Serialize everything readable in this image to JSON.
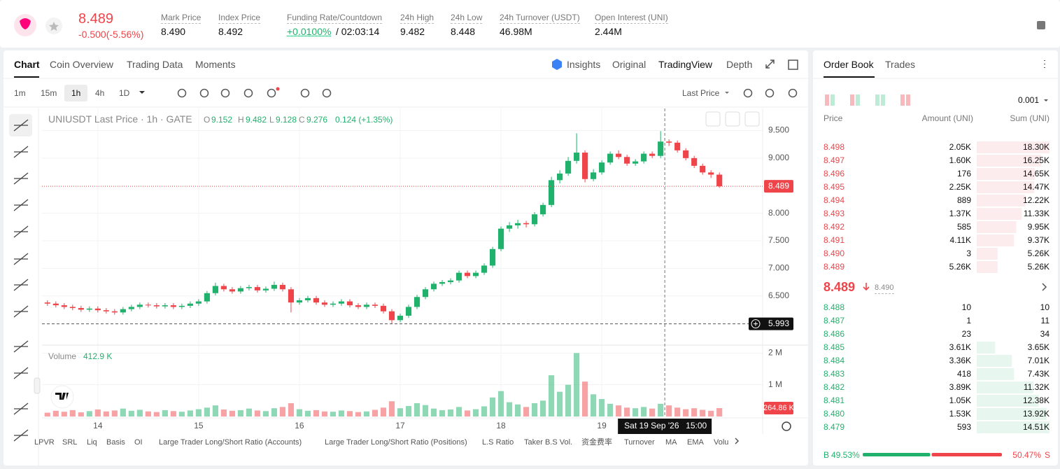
{
  "header": {
    "price": "8.489",
    "change": "-0.500(-5.56%)",
    "stats": [
      {
        "label": "Mark Price",
        "value": "8.490"
      },
      {
        "label": "Index Price",
        "value": "8.492"
      },
      {
        "label": "Funding Rate/Countdown",
        "value": "+0.0100%",
        "extra": "/ 02:03:14"
      },
      {
        "label": "24h High",
        "value": "9.482"
      },
      {
        "label": "24h Low",
        "value": "8.448"
      },
      {
        "label": "24h Turnover (USDT)",
        "value": "46.98M"
      },
      {
        "label": "Open Interest (UNI)",
        "value": "2.44M"
      }
    ]
  },
  "chart_tabs": [
    "Chart",
    "Coin Overview",
    "Trading Data",
    "Moments"
  ],
  "view_tabs": [
    "Insights",
    "Original",
    "TradingView",
    "Depth"
  ],
  "intervals": [
    "1m",
    "15m",
    "1h",
    "4h",
    "1D"
  ],
  "price_type": "Last Price",
  "legend": {
    "symbol": "UNIUSDT Last Price · 1h · GATE",
    "o_label": "O",
    "o": "9.152",
    "h_label": "H",
    "h": "9.482",
    "l_label": "L",
    "l": "9.128",
    "c_label": "C",
    "c": "9.276",
    "change": "0.124 (+1.35%)"
  },
  "volume_legend": {
    "label": "Volume",
    "value": "412.9 K"
  },
  "bottom_indicators": [
    "LPVR",
    "SRL",
    "Liq",
    "Basis",
    "OI",
    "Large Trader Long/Short Ratio (Accounts)",
    "Large Trader Long/Short Ratio (Positions)",
    "L.S Ratio",
    "Taker B.S Vol.",
    "资金费率",
    "Turnover",
    "MA",
    "EMA",
    "Volu"
  ],
  "chart_data": {
    "type": "candlestick",
    "x": [
      -12,
      -10,
      -8,
      -6,
      -4,
      -2,
      0,
      2,
      4,
      6,
      8,
      10,
      12,
      14,
      16,
      18,
      20,
      22,
      24,
      26,
      28,
      30,
      32,
      34,
      36,
      38,
      40,
      42,
      44,
      46,
      48,
      50,
      52,
      54,
      56,
      58,
      60,
      62,
      64,
      66,
      68,
      70,
      72,
      74,
      76,
      78,
      80,
      82,
      84,
      86,
      88,
      90,
      92,
      94,
      96,
      98,
      100,
      102,
      104,
      106,
      108,
      110,
      112,
      114,
      116,
      118,
      120,
      122,
      124,
      126,
      128,
      130,
      132,
      134,
      136,
      138,
      140,
      142,
      144,
      146,
      148
    ],
    "open": [
      6.38,
      6.36,
      6.33,
      6.3,
      6.28,
      6.25,
      6.27,
      6.24,
      6.22,
      6.2,
      6.26,
      6.3,
      6.34,
      6.33,
      6.31,
      6.33,
      6.3,
      6.32,
      6.36,
      6.4,
      6.55,
      6.68,
      6.62,
      6.58,
      6.64,
      6.66,
      6.6,
      6.63,
      6.7,
      6.62,
      6.38,
      6.42,
      6.46,
      6.38,
      6.34,
      6.36,
      6.4,
      6.33,
      6.3,
      6.34,
      6.32,
      6.22,
      6.06,
      6.14,
      6.3,
      6.48,
      6.62,
      6.72,
      6.75,
      6.78,
      6.92,
      6.86,
      6.92,
      7.05,
      7.35,
      7.72,
      7.78,
      7.82,
      7.8,
      7.98,
      8.15,
      8.6,
      8.72,
      8.95,
      9.1,
      8.62,
      8.74,
      8.92,
      9.08,
      9.02,
      8.9,
      8.94,
      9.08,
      9.04,
      9.3,
      9.28,
      9.14,
      9.0,
      8.86,
      8.74,
      8.7
    ],
    "high": [
      6.42,
      6.4,
      6.37,
      6.34,
      6.32,
      6.31,
      6.31,
      6.28,
      6.26,
      6.3,
      6.34,
      6.38,
      6.38,
      6.37,
      6.37,
      6.37,
      6.36,
      6.4,
      6.44,
      6.59,
      6.74,
      6.72,
      6.66,
      6.68,
      6.7,
      6.7,
      6.67,
      6.76,
      6.74,
      6.66,
      6.46,
      6.5,
      6.5,
      6.42,
      6.4,
      6.44,
      6.44,
      6.37,
      6.38,
      6.38,
      6.36,
      6.26,
      6.18,
      6.34,
      6.52,
      6.66,
      6.76,
      6.79,
      6.82,
      6.96,
      6.96,
      6.96,
      7.09,
      7.39,
      7.76,
      7.84,
      7.88,
      7.86,
      8.02,
      8.19,
      8.66,
      8.78,
      9.02,
      9.45,
      9.14,
      8.8,
      8.96,
      9.12,
      9.14,
      9.06,
      8.98,
      9.12,
      9.12,
      9.49,
      9.34,
      9.32,
      9.18,
      9.04,
      8.9,
      8.78,
      8.74
    ],
    "low": [
      6.32,
      6.29,
      6.26,
      6.24,
      6.21,
      6.21,
      6.2,
      6.18,
      6.16,
      6.16,
      6.22,
      6.26,
      6.29,
      6.27,
      6.27,
      6.26,
      6.26,
      6.28,
      6.32,
      6.36,
      6.51,
      6.58,
      6.54,
      6.54,
      6.6,
      6.56,
      6.56,
      6.59,
      6.58,
      6.2,
      6.34,
      6.38,
      6.34,
      6.3,
      6.3,
      6.32,
      6.29,
      6.26,
      6.26,
      6.28,
      6.18,
      5.993,
      6.02,
      6.1,
      6.26,
      6.44,
      6.58,
      6.68,
      6.71,
      6.74,
      6.82,
      6.82,
      6.88,
      7.01,
      7.31,
      7.66,
      7.72,
      7.74,
      7.76,
      7.94,
      8.11,
      8.54,
      8.68,
      8.9,
      8.56,
      8.58,
      8.7,
      8.88,
      8.98,
      8.86,
      8.86,
      8.9,
      9.0,
      9.0,
      9.22,
      9.1,
      8.96,
      8.82,
      8.7,
      8.64,
      8.46
    ],
    "close": [
      6.36,
      6.33,
      6.3,
      6.28,
      6.25,
      6.27,
      6.24,
      6.22,
      6.2,
      6.26,
      6.3,
      6.34,
      6.33,
      6.31,
      6.33,
      6.3,
      6.32,
      6.36,
      6.4,
      6.55,
      6.68,
      6.62,
      6.58,
      6.64,
      6.66,
      6.6,
      6.63,
      6.7,
      6.62,
      6.38,
      6.42,
      6.46,
      6.38,
      6.34,
      6.36,
      6.4,
      6.33,
      6.3,
      6.34,
      6.32,
      6.22,
      6.06,
      6.14,
      6.3,
      6.48,
      6.62,
      6.72,
      6.75,
      6.78,
      6.92,
      6.86,
      6.92,
      7.05,
      7.35,
      7.72,
      7.78,
      7.82,
      7.8,
      7.98,
      8.15,
      8.6,
      8.72,
      8.95,
      9.1,
      8.62,
      8.74,
      8.92,
      9.08,
      9.02,
      8.9,
      8.94,
      9.08,
      9.04,
      9.3,
      9.28,
      9.14,
      9.0,
      8.86,
      8.74,
      8.7,
      8.489
    ],
    "volume": [
      120000,
      180000,
      150000,
      200000,
      130000,
      170000,
      220000,
      160000,
      190000,
      250000,
      180000,
      210000,
      160000,
      140000,
      200000,
      170000,
      150000,
      190000,
      230000,
      280000,
      350000,
      220000,
      180000,
      200000,
      250000,
      190000,
      170000,
      260000,
      300000,
      420000,
      230000,
      180000,
      200000,
      160000,
      150000,
      190000,
      170000,
      140000,
      160000,
      210000,
      280000,
      480000,
      260000,
      330000,
      420000,
      360000,
      250000,
      200000,
      220000,
      300000,
      190000,
      230000,
      320000,
      600000,
      800000,
      450000,
      380000,
      300000,
      420000,
      500000,
      1300000,
      780000,
      1000000,
      2000000,
      1100000,
      700000,
      550000,
      400000,
      350000,
      280000,
      260000,
      300000,
      250000,
      400000,
      350000,
      280000,
      230000,
      260000,
      210000,
      180000,
      264860
    ],
    "last_volume_label": "264.86 K",
    "xlim": [
      -13.3,
      158.3
    ],
    "xticks": [
      {
        "value": 0,
        "label": "14"
      },
      {
        "value": 24,
        "label": "15"
      },
      {
        "value": 48,
        "label": "16"
      },
      {
        "value": 72,
        "label": "17"
      },
      {
        "value": 96,
        "label": "18"
      },
      {
        "value": 120,
        "label": "19"
      }
    ],
    "ylim": [
      5.62,
      9.9
    ],
    "yticks": [
      {
        "value": 6.5,
        "label": "6.500"
      },
      {
        "value": 7,
        "label": "7.000"
      },
      {
        "value": 7.5,
        "label": "7.500"
      },
      {
        "value": 8,
        "label": "8.000"
      },
      {
        "value": 9,
        "label": "9.000"
      },
      {
        "value": 9.5,
        "label": "9.500"
      }
    ],
    "volume_ylim": [
      0,
      2250000
    ],
    "volume_yticks": [
      {
        "value": 1000000,
        "label": "1 M"
      },
      {
        "value": 2000000,
        "label": "2 M"
      }
    ],
    "crosshair": {
      "x": 135,
      "date": "Sat 19 Sep '26",
      "time": "15:00"
    },
    "up_color": "#20b26c",
    "down_color": "#ef454a",
    "grid": true
  },
  "order_book": {
    "tabs": [
      "Order Book",
      "Trades"
    ],
    "tick_size": "0.001",
    "headers": [
      "Price",
      "Amount (UNI)",
      "Sum (UNI)"
    ],
    "asks": [
      {
        "price": "8.498",
        "amount": "2.05K",
        "sum": {
          "value": 18300,
          "label": "18.30K"
        }
      },
      {
        "price": "8.497",
        "amount": "1.60K",
        "sum": {
          "value": 16250,
          "label": "16.25K"
        }
      },
      {
        "price": "8.496",
        "amount": "176",
        "sum": {
          "value": 14650,
          "label": "14.65K"
        }
      },
      {
        "price": "8.495",
        "amount": "2.25K",
        "sum": {
          "value": 14470,
          "label": "14.47K"
        }
      },
      {
        "price": "8.494",
        "amount": "889",
        "sum": {
          "value": 12220,
          "label": "12.22K"
        }
      },
      {
        "price": "8.493",
        "amount": "1.37K",
        "sum": {
          "value": 11330,
          "label": "11.33K"
        }
      },
      {
        "price": "8.492",
        "amount": "585",
        "sum": {
          "value": 9950,
          "label": "9.95K"
        }
      },
      {
        "price": "8.491",
        "amount": "4.11K",
        "sum": {
          "value": 9370,
          "label": "9.37K"
        }
      },
      {
        "price": "8.490",
        "amount": "3",
        "sum": {
          "value": 5260,
          "label": "5.26K"
        }
      },
      {
        "price": "8.489",
        "amount": "5.26K",
        "sum": {
          "value": 5260,
          "label": "5.26K"
        }
      }
    ],
    "mid_price": "8.489",
    "mark_price": "8.490",
    "bids": [
      {
        "price": "8.488",
        "amount": "10",
        "sum": 10
      },
      {
        "price": "8.487",
        "amount": "1",
        "sum": 11
      },
      {
        "price": "8.486",
        "amount": "23",
        "sum": 34
      },
      {
        "price": "8.485",
        "amount": "3.61K",
        "sum": {
          "value": 3650,
          "label": "3.65K"
        }
      },
      {
        "price": "8.484",
        "amount": "3.36K",
        "sum": {
          "value": 7010,
          "label": "7.01K"
        }
      },
      {
        "price": "8.483",
        "amount": "418",
        "sum": {
          "value": 7430,
          "label": "7.43K"
        }
      },
      {
        "price": "8.482",
        "amount": "3.89K",
        "sum": {
          "value": 11320,
          "label": "11.32K"
        }
      },
      {
        "price": "8.481",
        "amount": "1.05K",
        "sum": {
          "value": 12380,
          "label": "12.38K"
        }
      },
      {
        "price": "8.480",
        "amount": "1.53K",
        "sum": {
          "value": 13920,
          "label": "13.92K"
        }
      },
      {
        "price": "8.479",
        "amount": "593",
        "sum": {
          "value": 14510,
          "label": "14.51K"
        }
      }
    ],
    "buy_label": "B",
    "buy_ratio": {
      "value": 49.53,
      "label": "49.53%"
    },
    "sell_ratio": {
      "value": 50.47,
      "label": "50.47%"
    },
    "sell_label": "S"
  }
}
